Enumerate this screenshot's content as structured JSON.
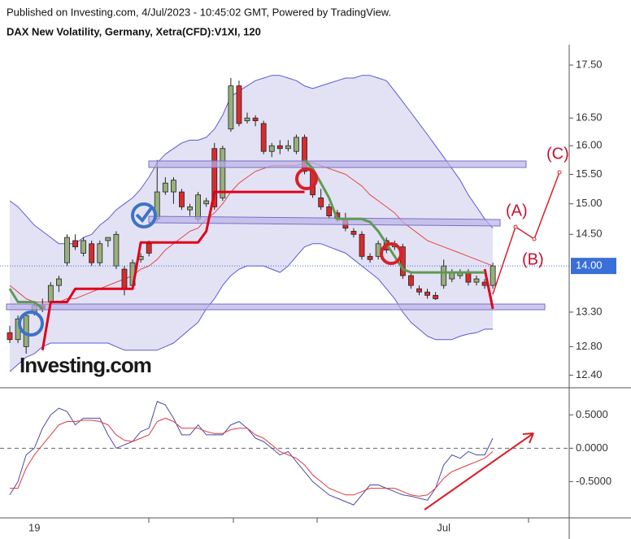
{
  "header": "Published on Investing.com, 4/Jul/2023 - 10:45:02 GMT, Powered by TradingView.",
  "chart_data": [
    {
      "type": "candlestick",
      "title": "DAX New Volatility, Germany, Xetra(CFD):V1XI, 120",
      "logo": "Investing.com",
      "annotations": [
        "(A)",
        "(B)",
        "(C)"
      ],
      "log": true,
      "ylim": [
        12.25,
        17.9
      ],
      "yticks": [
        {
          "value": 17.5,
          "label": "17.50"
        },
        {
          "value": 16.5,
          "label": "16.50"
        },
        {
          "value": 16,
          "label": "16.00"
        },
        {
          "value": 15.5,
          "label": "15.50"
        },
        {
          "value": 15,
          "label": "15.00"
        },
        {
          "value": 14.5,
          "label": "14.50"
        },
        {
          "value": 13.3,
          "label": "13.30"
        },
        {
          "value": 12.8,
          "label": "12.80"
        },
        {
          "value": 12.4,
          "label": "12.40"
        }
      ],
      "last_price": {
        "value": 14,
        "label": "14.00"
      },
      "up_color": "#97b07c",
      "down_color": "#d92b2b",
      "categories": [
        null,
        null,
        null,
        "19",
        null,
        null,
        null,
        null,
        null,
        null,
        null,
        null,
        null,
        null,
        null,
        null,
        null,
        null,
        null,
        null,
        null,
        null,
        null,
        null,
        null,
        null,
        null,
        null,
        null,
        null,
        null,
        null,
        null,
        null,
        null,
        null,
        null,
        null,
        null,
        null,
        null,
        null,
        null,
        null,
        null,
        null,
        null,
        null,
        null,
        null,
        null,
        null,
        null,
        "Jul",
        null,
        null,
        null,
        null,
        null,
        null
      ],
      "open": [
        13.0,
        12.9,
        12.8,
        13.3,
        13.4,
        13.45,
        13.7,
        14.05,
        14.4,
        14.2,
        14.35,
        14.05,
        14.4,
        14.0,
        13.95,
        13.7,
        14.1,
        14.35,
        14.75,
        15.2,
        15.2,
        15.2,
        14.9,
        14.75,
        15.0,
        15.95,
        15.1,
        16.3,
        17.1,
        16.45,
        16.5,
        16.4,
        15.9,
        16.0,
        15.95,
        15.9,
        16.15,
        15.55,
        15.1,
        14.95,
        14.85,
        14.75,
        14.55,
        14.5,
        14.15,
        14.15,
        14.4,
        14.3,
        14.3,
        13.85,
        13.65,
        13.6,
        13.55,
        13.7,
        13.8,
        13.85,
        13.9,
        13.75,
        13.75,
        13.7
      ],
      "high": [
        13.1,
        13.25,
        13.3,
        13.45,
        13.5,
        13.75,
        13.85,
        14.5,
        14.5,
        14.45,
        14.4,
        14.4,
        14.45,
        14.55,
        14.0,
        14.1,
        14.2,
        14.4,
        15.75,
        15.45,
        15.45,
        15.25,
        15.0,
        15.2,
        15.1,
        16.05,
        16.0,
        17.25,
        17.2,
        16.6,
        16.55,
        16.45,
        16.05,
        16.1,
        16.1,
        16.2,
        16.2,
        15.6,
        15.25,
        15.0,
        14.9,
        14.85,
        14.6,
        14.55,
        14.2,
        14.4,
        14.45,
        14.4,
        14.35,
        13.9,
        13.7,
        13.65,
        13.6,
        14.1,
        13.95,
        13.95,
        13.95,
        13.85,
        13.8,
        14.05
      ],
      "low": [
        12.85,
        12.85,
        12.7,
        13.25,
        13.3,
        13.4,
        13.6,
        14.0,
        14.25,
        14.15,
        14.0,
        14.0,
        14.3,
        13.95,
        13.55,
        13.65,
        14.05,
        14.15,
        14.7,
        15.15,
        15.0,
        14.9,
        14.8,
        14.7,
        14.95,
        14.9,
        15.05,
        16.25,
        16.35,
        16.4,
        16.35,
        15.85,
        15.8,
        15.85,
        15.9,
        15.85,
        15.5,
        15.1,
        14.9,
        14.75,
        14.7,
        14.55,
        14.45,
        14.1,
        14.05,
        14.1,
        14.2,
        14.25,
        13.8,
        13.65,
        13.55,
        13.5,
        13.48,
        13.65,
        13.75,
        13.8,
        13.7,
        13.7,
        13.65,
        13.65
      ],
      "close": [
        12.9,
        13.2,
        13.25,
        13.4,
        13.35,
        13.7,
        13.8,
        14.45,
        14.3,
        14.4,
        14.05,
        14.35,
        14.45,
        14.5,
        13.65,
        14.05,
        14.15,
        14.2,
        15.2,
        15.35,
        15.4,
        14.95,
        14.95,
        15.15,
        15.05,
        14.95,
        15.95,
        17.1,
        16.4,
        16.5,
        16.45,
        15.9,
        16.0,
        15.95,
        16.0,
        16.15,
        15.55,
        15.15,
        14.95,
        14.8,
        14.75,
        14.6,
        14.5,
        14.15,
        14.1,
        14.35,
        14.25,
        14.35,
        13.85,
        13.7,
        13.6,
        13.55,
        13.5,
        14.0,
        13.9,
        13.9,
        13.75,
        13.8,
        13.7,
        14.0
      ],
      "overlays": [
        {
          "color": "#5a5ad6",
          "width": 1,
          "values": [
            15.05,
            14.95,
            14.8,
            14.65,
            14.55,
            14.45,
            14.35,
            14.35,
            14.35,
            14.45,
            14.5,
            14.65,
            14.75,
            14.9,
            15.0,
            15.1,
            15.25,
            15.45,
            15.7,
            15.85,
            15.95,
            16.05,
            16.1,
            16.1,
            16.15,
            16.3,
            16.55,
            16.9,
            17.0,
            17.1,
            17.2,
            17.25,
            17.3,
            17.3,
            17.25,
            17.2,
            17.1,
            17.05,
            17.1,
            17.15,
            17.2,
            17.25,
            17.25,
            17.3,
            17.3,
            17.25,
            17.2,
            17.0,
            16.8,
            16.6,
            16.4,
            16.2,
            16.0,
            15.8,
            15.6,
            15.4,
            15.15,
            14.95,
            14.75,
            14.6
          ]
        },
        {
          "color": "#5a5ad6",
          "width": 1,
          "values": [
            12.45,
            12.55,
            12.65,
            12.7,
            12.8,
            12.85,
            12.85,
            12.85,
            12.85,
            12.85,
            12.85,
            12.85,
            12.85,
            12.8,
            12.75,
            12.75,
            12.75,
            12.75,
            12.75,
            12.8,
            12.85,
            12.95,
            13.05,
            13.15,
            13.35,
            13.5,
            13.7,
            13.85,
            13.95,
            14.0,
            14.0,
            14.0,
            13.95,
            13.9,
            14.0,
            14.15,
            14.3,
            14.35,
            14.35,
            14.3,
            14.25,
            14.2,
            14.1,
            14.0,
            13.9,
            13.8,
            13.65,
            13.5,
            13.3,
            13.15,
            13.05,
            12.95,
            12.9,
            12.9,
            12.9,
            12.95,
            12.98,
            13.0,
            13.05,
            13.05
          ]
        },
        {
          "color": "#e04848",
          "width": 1,
          "values": [
            13.7,
            13.6,
            13.5,
            13.45,
            13.45,
            13.45,
            13.45,
            13.5,
            13.5,
            13.55,
            13.6,
            13.65,
            13.7,
            13.75,
            13.8,
            13.85,
            13.95,
            14.0,
            14.1,
            14.25,
            14.35,
            14.45,
            14.55,
            14.6,
            14.75,
            14.85,
            15.0,
            15.2,
            15.35,
            15.45,
            15.55,
            15.6,
            15.65,
            15.65,
            15.65,
            15.65,
            15.7,
            15.7,
            15.65,
            15.6,
            15.55,
            15.5,
            15.4,
            15.3,
            15.15,
            15.05,
            14.95,
            14.85,
            14.7,
            14.6,
            14.5,
            14.4,
            14.35,
            14.3,
            14.25,
            14.2,
            14.15,
            14.1,
            14.05,
            14.0
          ]
        },
        {
          "color": "#e0001a",
          "width": 3,
          "values": [
            null,
            null,
            null,
            null,
            12.75,
            13.45,
            13.45,
            13.45,
            13.65,
            13.65,
            13.65,
            13.65,
            13.65,
            13.65,
            13.65,
            13.65,
            14.37,
            14.37,
            14.37,
            14.37,
            14.37,
            14.37,
            14.37,
            14.37,
            14.55,
            15.2,
            15.2,
            15.2,
            15.2,
            15.2,
            15.2,
            15.2,
            15.2,
            15.2,
            15.2,
            15.2,
            15.2,
            null,
            null,
            null,
            null,
            null,
            null,
            null,
            null,
            null,
            null,
            null,
            null,
            null,
            null,
            null,
            null,
            null,
            null,
            null,
            null,
            null,
            13.95,
            13.35
          ]
        },
        {
          "color": "#5e9a52",
          "width": 3,
          "values": [
            13.65,
            13.45,
            13.45,
            13.45,
            13.35,
            null,
            null,
            null,
            null,
            null,
            null,
            null,
            null,
            null,
            null,
            null,
            null,
            null,
            null,
            null,
            null,
            null,
            null,
            null,
            null,
            null,
            null,
            null,
            null,
            null,
            null,
            null,
            null,
            null,
            null,
            null,
            15.75,
            15.6,
            15.35,
            15.1,
            14.75,
            14.75,
            14.75,
            14.75,
            14.7,
            14.55,
            14.35,
            14.15,
            13.95,
            13.9,
            13.9,
            13.9,
            13.9,
            13.9,
            13.9,
            13.9,
            13.9,
            13.9,
            13.9,
            null
          ]
        }
      ]
    },
    {
      "type": "line",
      "ylim": [
        -1.02,
        0.87
      ],
      "yticks": [
        {
          "value": 0.5,
          "label": "0.5000"
        },
        {
          "value": 0,
          "label": "0.0000"
        },
        {
          "value": -0.5,
          "label": "-0.5000"
        }
      ],
      "zero_line": true,
      "series": [
        {
          "color": "#4a4aa8",
          "values": [
            -0.7,
            -0.5,
            -0.1,
            0.0,
            0.3,
            0.5,
            0.6,
            0.55,
            0.35,
            0.45,
            0.45,
            0.45,
            0.2,
            0.0,
            0.05,
            0.1,
            0.25,
            0.3,
            0.7,
            0.65,
            0.45,
            0.2,
            0.2,
            0.35,
            0.2,
            0.2,
            0.2,
            0.35,
            0.4,
            0.3,
            0.15,
            0.1,
            0.0,
            -0.1,
            -0.05,
            -0.2,
            -0.35,
            -0.5,
            -0.6,
            -0.7,
            -0.75,
            -0.8,
            -0.85,
            -0.7,
            -0.55,
            -0.55,
            -0.6,
            -0.65,
            -0.7,
            -0.72,
            -0.75,
            -0.78,
            -0.6,
            -0.25,
            -0.1,
            -0.15,
            -0.05,
            -0.1,
            -0.1,
            0.15
          ]
        },
        {
          "color": "#e03a3a",
          "values": [
            -0.6,
            -0.6,
            -0.3,
            -0.1,
            0.05,
            0.2,
            0.35,
            0.4,
            0.4,
            0.42,
            0.42,
            0.4,
            0.35,
            0.2,
            0.12,
            0.1,
            0.15,
            0.2,
            0.4,
            0.45,
            0.4,
            0.3,
            0.3,
            0.3,
            0.25,
            0.22,
            0.22,
            0.28,
            0.3,
            0.3,
            0.2,
            0.15,
            0.05,
            -0.05,
            -0.1,
            -0.15,
            -0.25,
            -0.4,
            -0.5,
            -0.6,
            -0.65,
            -0.7,
            -0.7,
            -0.65,
            -0.6,
            -0.6,
            -0.6,
            -0.6,
            -0.65,
            -0.7,
            -0.72,
            -0.7,
            -0.6,
            -0.45,
            -0.35,
            -0.3,
            -0.25,
            -0.2,
            -0.15,
            -0.05
          ]
        }
      ]
    }
  ]
}
